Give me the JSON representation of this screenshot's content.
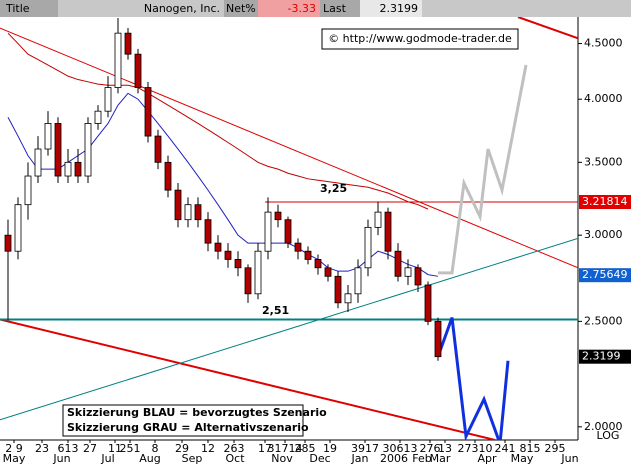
{
  "chart_data": {
    "type": "candlestick",
    "header": {
      "title_label": "Title",
      "name": "Nanogen, Inc.",
      "net_label": "Net%",
      "net_value": "-3.33",
      "last_label": "Last",
      "last_value": "2.3199"
    },
    "watermark": "© http://www.godmode-trader.de",
    "annotations": [
      "3,25",
      "2,51"
    ],
    "legend_lines": [
      "Skizzierung BLAU = bevorzugtes Szenario",
      "Skizzierung GRAU = Alternativszenario"
    ],
    "scale_label": "LOG",
    "log_scale": true,
    "xlim": [
      -0.8,
      57
    ],
    "ylim": [
      1.945,
      4.76
    ],
    "yticks": [
      {
        "value": 2,
        "label": "2.0000"
      },
      {
        "value": 2.5,
        "label": "2.5000"
      },
      {
        "value": 3,
        "label": "3.0000"
      },
      {
        "value": 3.5,
        "label": "3.5000"
      },
      {
        "value": 4,
        "label": "4.0000"
      },
      {
        "value": 4.5,
        "label": "4.5000"
      }
    ],
    "xticks": [
      {
        "value": 0.6,
        "label": "2 9"
      },
      {
        "value": 3.4,
        "label": "23"
      },
      {
        "value": 6,
        "label": "613"
      },
      {
        "value": 8.2,
        "label": "27"
      },
      {
        "value": 10.7,
        "label": "11"
      },
      {
        "value": 12.2,
        "label": "251"
      },
      {
        "value": 14.7,
        "label": "8"
      },
      {
        "value": 17.4,
        "label": "29"
      },
      {
        "value": 20,
        "label": "12"
      },
      {
        "value": 22.6,
        "label": "263"
      },
      {
        "value": 25.7,
        "label": "17"
      },
      {
        "value": 27.7,
        "label": "31714"
      },
      {
        "value": 29.7,
        "label": "285"
      },
      {
        "value": 32.2,
        "label": "19"
      },
      {
        "value": 35.7,
        "label": "3917"
      },
      {
        "value": 39.2,
        "label": "30613"
      },
      {
        "value": 42.2,
        "label": "276"
      },
      {
        "value": 43.7,
        "label": "13"
      },
      {
        "value": 46.7,
        "label": "27310"
      },
      {
        "value": 49.7,
        "label": "241"
      },
      {
        "value": 52.2,
        "label": "815"
      },
      {
        "value": 54.7,
        "label": "295"
      }
    ],
    "month_ticks": [
      {
        "value": 0.6,
        "label": "May"
      },
      {
        "value": 5.4,
        "label": "Jun"
      },
      {
        "value": 10,
        "label": "Jul"
      },
      {
        "value": 14.2,
        "label": "Aug"
      },
      {
        "value": 18.4,
        "label": "Sep"
      },
      {
        "value": 22.7,
        "label": "Oct"
      },
      {
        "value": 27.4,
        "label": "Nov"
      },
      {
        "value": 31.2,
        "label": "Dec"
      },
      {
        "value": 35.2,
        "label": "Jan"
      },
      {
        "value": 38.6,
        "label": "2006"
      },
      {
        "value": 41.4,
        "label": "Feb"
      },
      {
        "value": 43.2,
        "label": "Mar"
      },
      {
        "value": 47.9,
        "label": "Apr"
      },
      {
        "value": 51.4,
        "label": "May"
      },
      {
        "value": 56.2,
        "label": "Jun"
      }
    ],
    "open": [
      3.0,
      2.9,
      3.2,
      3.4,
      3.6,
      3.8,
      3.4,
      3.5,
      3.4,
      3.8,
      3.9,
      4.1,
      4.6,
      4.4,
      4.1,
      3.7,
      3.5,
      3.3,
      3.1,
      3.2,
      3.1,
      2.95,
      2.9,
      2.85,
      2.8,
      2.65,
      2.9,
      3.15,
      3.1,
      2.95,
      2.9,
      2.85,
      2.8,
      2.75,
      2.6,
      2.65,
      2.8,
      3.05,
      3.15,
      2.9,
      2.75,
      2.8,
      2.7,
      2.5
    ],
    "high": [
      3.1,
      3.25,
      3.5,
      3.7,
      3.9,
      3.85,
      3.6,
      3.6,
      3.85,
      3.95,
      4.2,
      4.75,
      4.65,
      4.45,
      4.15,
      3.75,
      3.55,
      3.35,
      3.25,
      3.25,
      3.15,
      3.0,
      2.95,
      2.9,
      2.82,
      2.95,
      3.25,
      3.2,
      3.12,
      2.98,
      2.93,
      2.88,
      2.82,
      2.78,
      2.7,
      2.85,
      3.1,
      3.22,
      3.18,
      2.95,
      2.85,
      2.82,
      2.72,
      2.52
    ],
    "low": [
      2.51,
      2.85,
      3.1,
      3.35,
      3.55,
      3.35,
      3.35,
      3.35,
      3.35,
      3.75,
      3.85,
      4.05,
      4.35,
      4.05,
      3.65,
      3.45,
      3.25,
      3.05,
      3.05,
      3.05,
      2.9,
      2.85,
      2.8,
      2.75,
      2.6,
      2.62,
      2.85,
      3.05,
      2.92,
      2.85,
      2.82,
      2.76,
      2.72,
      2.57,
      2.55,
      2.6,
      2.75,
      3.0,
      2.85,
      2.72,
      2.7,
      2.66,
      2.48,
      2.3
    ],
    "close": [
      2.9,
      3.2,
      3.4,
      3.6,
      3.8,
      3.4,
      3.5,
      3.4,
      3.8,
      3.9,
      4.1,
      4.6,
      4.4,
      4.1,
      3.7,
      3.5,
      3.3,
      3.1,
      3.2,
      3.1,
      2.95,
      2.9,
      2.85,
      2.8,
      2.65,
      2.9,
      3.15,
      3.1,
      2.95,
      2.9,
      2.85,
      2.8,
      2.75,
      2.6,
      2.65,
      2.8,
      3.05,
      3.15,
      2.9,
      2.75,
      2.8,
      2.7,
      2.5,
      2.32
    ],
    "series": [
      {
        "color": "#2020c0",
        "values": [
          3.85,
          3.7,
          3.55,
          3.45,
          3.45,
          3.45,
          3.5,
          3.55,
          3.6,
          3.7,
          3.8,
          3.95,
          4.05,
          4.0,
          3.9,
          3.8,
          3.7,
          3.6,
          3.5,
          3.4,
          3.3,
          3.2,
          3.1,
          3.0,
          2.95,
          2.95,
          2.95,
          2.95,
          2.95,
          2.92,
          2.88,
          2.85,
          2.8,
          2.78,
          2.78,
          2.8,
          2.85,
          2.9,
          2.88,
          2.85,
          2.82,
          2.8,
          2.76,
          2.75
        ]
      },
      {
        "color": "#c00000",
        "values": [
          4.6,
          4.5,
          4.4,
          4.35,
          4.3,
          4.25,
          4.2,
          4.17,
          4.15,
          4.13,
          4.12,
          4.12,
          4.12,
          4.1,
          4.05,
          4.0,
          3.95,
          3.9,
          3.85,
          3.8,
          3.75,
          3.7,
          3.65,
          3.6,
          3.55,
          3.5,
          3.47,
          3.45,
          3.42,
          3.4,
          3.38,
          3.37,
          3.36,
          3.35,
          3.34,
          3.33,
          3.32,
          3.3,
          3.28,
          3.25,
          3.22,
          3.2,
          3.17,
          null
        ]
      }
    ],
    "lines": [
      {
        "color": "#e00000",
        "width": 1,
        "x": [
          -0.8,
          57
        ],
        "values": [
          4.65,
          2.8
        ]
      },
      {
        "color": "#e00000",
        "width": 2,
        "x": [
          51,
          57
        ],
        "values": [
          4.76,
          4.55
        ]
      },
      {
        "color": "#e00000",
        "width": 2,
        "x": [
          -0.8,
          48.7
        ],
        "values": [
          2.51,
          1.945
        ]
      },
      {
        "color": "#008080",
        "width": 1,
        "x": [
          -0.8,
          57
        ],
        "values": [
          2.03,
          2.98
        ]
      },
      {
        "color": "#008080",
        "width": 2,
        "x": [
          -0.8,
          57
        ],
        "values": [
          2.51,
          2.51
        ]
      },
      {
        "color": "#d00000",
        "width": 1,
        "x": [
          25.7,
          57
        ],
        "values": [
          3.21814,
          3.21814
        ]
      },
      {
        "color": "#c0c0c0",
        "width": 3,
        "x": [
          43,
          44.4,
          45.6,
          47.2,
          48,
          49.4,
          51.8
        ],
        "values": [
          2.77,
          2.77,
          3.35,
          3.12,
          3.6,
          3.3,
          4.3
        ]
      },
      {
        "color": "#1030e0",
        "width": 3,
        "x": [
          43,
          44.4,
          45.8,
          47.6,
          49.2,
          50
        ],
        "values": [
          2.32,
          2.52,
          1.96,
          2.12,
          1.93,
          2.3
        ]
      }
    ],
    "price_boxes": [
      {
        "value": 3.21814,
        "color": "#e00000"
      },
      {
        "value": 2.75649,
        "color": "#1060d0"
      },
      {
        "value": 2.3199,
        "color": "#000000"
      }
    ]
  }
}
